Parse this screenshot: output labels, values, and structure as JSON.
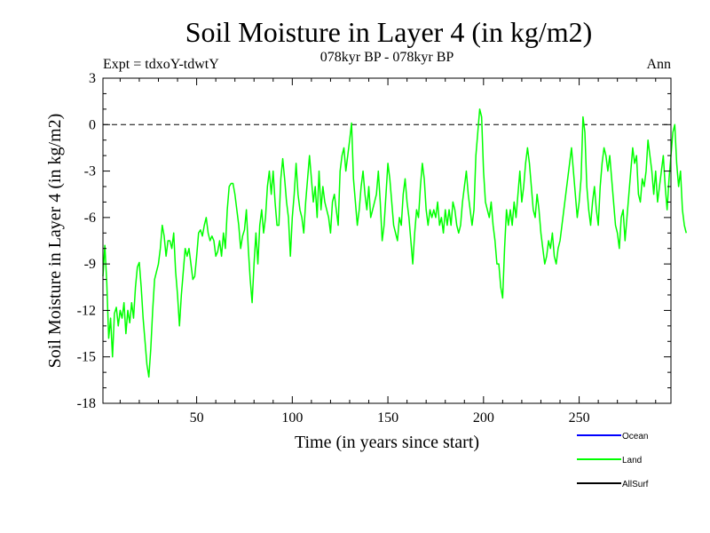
{
  "chart_data": {
    "type": "line",
    "title": "Soil Moisture in Layer 4 (in kg/m2)",
    "subtitle": "078kyr BP - 078kyr BP",
    "experiment_label": "Expt = tdxoY-tdwtY",
    "season_label": "Ann",
    "xlabel": "Time (in years since start)",
    "ylabel": "Soil Moisture in Layer 4 (in kg/m2)",
    "xlim": [
      1,
      298
    ],
    "ylim": [
      -18,
      3
    ],
    "x_ticks": [
      50,
      100,
      150,
      200,
      250
    ],
    "y_ticks": [
      3,
      0,
      -3,
      -6,
      -9,
      -12,
      -15,
      -18
    ],
    "reference_line": 0,
    "legend": [
      {
        "name": "Ocean",
        "color": "#0000ff"
      },
      {
        "name": "Land",
        "color": "#00ff00"
      },
      {
        "name": "AllSurf",
        "color": "#000000"
      }
    ],
    "series": [
      {
        "name": "Land",
        "color": "#00ff00",
        "x_start": 1,
        "x_step": 1,
        "values": [
          -9.8,
          -7.8,
          -10.2,
          -13.8,
          -12.5,
          -15.0,
          -12.2,
          -11.8,
          -13.0,
          -12.0,
          -12.5,
          -11.5,
          -13.5,
          -12.0,
          -12.8,
          -11.5,
          -12.5,
          -10.5,
          -9.2,
          -8.9,
          -10.5,
          -12.5,
          -14.0,
          -15.5,
          -16.3,
          -14.5,
          -12.0,
          -10.0,
          -9.5,
          -9.0,
          -8.0,
          -6.5,
          -7.2,
          -8.5,
          -7.5,
          -7.5,
          -8.0,
          -7.0,
          -9.5,
          -11.0,
          -13.0,
          -11.0,
          -9.5,
          -8.0,
          -8.5,
          -8.0,
          -9.0,
          -10.0,
          -9.8,
          -8.5,
          -7.0,
          -6.8,
          -7.2,
          -6.5,
          -6.0,
          -7.0,
          -7.5,
          -7.2,
          -7.5,
          -8.5,
          -8.2,
          -7.5,
          -8.5,
          -7.0,
          -8.0,
          -5.5,
          -4.0,
          -3.8,
          -3.8,
          -4.5,
          -5.5,
          -6.5,
          -8.0,
          -7.2,
          -6.8,
          -5.5,
          -8.0,
          -10.0,
          -11.5,
          -9.0,
          -7.0,
          -9.0,
          -6.5,
          -5.5,
          -7.0,
          -6.0,
          -4.0,
          -3.0,
          -4.5,
          -3.0,
          -5.0,
          -6.5,
          -6.5,
          -3.5,
          -2.2,
          -3.5,
          -5.0,
          -6.0,
          -8.5,
          -6.0,
          -4.5,
          -2.5,
          -4.5,
          -5.5,
          -6.0,
          -7.0,
          -5.0,
          -3.5,
          -2.0,
          -3.5,
          -5.0,
          -4.0,
          -6.0,
          -3.0,
          -5.5,
          -4.0,
          -5.0,
          -5.5,
          -6.0,
          -7.0,
          -5.0,
          -4.5,
          -5.5,
          -6.5,
          -3.0,
          -2.0,
          -1.5,
          -3.0,
          -2.0,
          -1.0,
          0.1,
          -3.5,
          -5.0,
          -6.5,
          -5.5,
          -4.0,
          -3.0,
          -4.5,
          -5.5,
          -4.0,
          -6.0,
          -5.5,
          -5.0,
          -4.5,
          -3.0,
          -5.0,
          -7.5,
          -6.5,
          -4.5,
          -2.5,
          -3.5,
          -5.0,
          -6.5,
          -7.0,
          -7.5,
          -6.0,
          -6.5,
          -4.5,
          -3.5,
          -5.0,
          -6.0,
          -7.5,
          -9.0,
          -7.0,
          -5.5,
          -6.0,
          -4.0,
          -2.5,
          -3.5,
          -5.5,
          -6.5,
          -5.5,
          -6.0,
          -5.5,
          -6.0,
          -5.0,
          -6.5,
          -6.0,
          -7.0,
          -5.5,
          -6.5,
          -5.5,
          -6.5,
          -5.0,
          -5.5,
          -6.5,
          -7.0,
          -6.5,
          -5.0,
          -4.0,
          -3.0,
          -4.5,
          -5.5,
          -6.5,
          -5.5,
          -2.0,
          -0.5,
          1.0,
          0.5,
          -3.0,
          -5.0,
          -5.5,
          -6.0,
          -5.0,
          -6.5,
          -7.5,
          -9.0,
          -9.0,
          -10.5,
          -11.2,
          -8.0,
          -5.5,
          -6.5,
          -5.5,
          -6.5,
          -5.0,
          -6.0,
          -4.5,
          -3.0,
          -5.0,
          -4.0,
          -2.5,
          -1.5,
          -2.5,
          -4.0,
          -5.5,
          -6.0,
          -4.5,
          -5.5,
          -7.0,
          -8.0,
          -9.0,
          -8.5,
          -7.5,
          -8.0,
          -7.0,
          -8.5,
          -9.0,
          -8.0,
          -7.5,
          -6.5,
          -5.5,
          -4.5,
          -3.5,
          -2.5,
          -1.5,
          -3.0,
          -4.5,
          -6.0,
          -5.0,
          -3.5,
          0.5,
          -0.5,
          -4.0,
          -5.5,
          -6.5,
          -5.0,
          -4.0,
          -5.5,
          -6.5,
          -4.0,
          -2.5,
          -1.5,
          -2.0,
          -3.0,
          -2.0,
          -3.5,
          -5.0,
          -6.5,
          -7.0,
          -8.0,
          -6.0,
          -5.5,
          -7.5,
          -6.0,
          -4.5,
          -3.0,
          -1.5,
          -2.5,
          -2.0,
          -4.5,
          -5.0,
          -3.5,
          -4.0,
          -3.0,
          -1.0,
          -2.0,
          -3.0,
          -4.5,
          -3.0,
          -5.0,
          -4.0,
          -3.0,
          -2.0,
          -4.0,
          -5.5,
          -3.5,
          -2.0,
          -0.5,
          0.0,
          -2.5,
          -4.0,
          -3.0,
          -5.5,
          -6.5,
          -7.0
        ]
      }
    ]
  }
}
